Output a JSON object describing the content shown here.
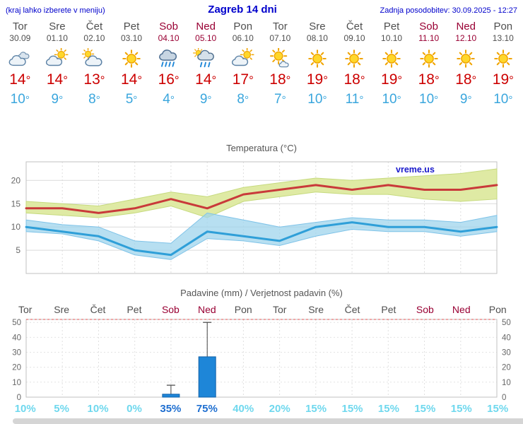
{
  "header": {
    "left_note": "(kraj lahko izberete v meniju)",
    "title": "Zagreb 14 dni",
    "updated": "Zadnja posodobitev: 30.09.2025 - 12:27"
  },
  "degree_symbol": "°",
  "colors": {
    "header_blue": "#0000cc",
    "weekend_red": "#990033",
    "temp_high_red": "#cc0000",
    "temp_low_blue": "#3aa6dd",
    "prob_light": "#6fd8ee",
    "prob_strong": "#1f6fd0",
    "bar_blue": "#1e86d8"
  },
  "days": [
    {
      "name": "Tor",
      "date": "30.09",
      "weekend": false,
      "icon": "cloudy",
      "high": "14",
      "low": "10"
    },
    {
      "name": "Sre",
      "date": "01.10",
      "weekend": false,
      "icon": "partly-cloudy",
      "high": "14",
      "low": "9"
    },
    {
      "name": "Čet",
      "date": "02.10",
      "weekend": false,
      "icon": "mostly-cloudy",
      "high": "13",
      "low": "8"
    },
    {
      "name": "Pet",
      "date": "03.10",
      "weekend": false,
      "icon": "sunny",
      "high": "14",
      "low": "5"
    },
    {
      "name": "Sob",
      "date": "04.10",
      "weekend": true,
      "icon": "rain",
      "high": "16",
      "low": "4"
    },
    {
      "name": "Ned",
      "date": "05.10",
      "weekend": true,
      "icon": "rain-showers",
      "high": "14",
      "low": "9"
    },
    {
      "name": "Pon",
      "date": "06.10",
      "weekend": false,
      "icon": "partly-cloudy",
      "high": "17",
      "low": "8"
    },
    {
      "name": "Tor",
      "date": "07.10",
      "weekend": false,
      "icon": "mostly-sunny",
      "high": "18",
      "low": "7"
    },
    {
      "name": "Sre",
      "date": "08.10",
      "weekend": false,
      "icon": "sunny",
      "high": "19",
      "low": "10"
    },
    {
      "name": "Čet",
      "date": "09.10",
      "weekend": false,
      "icon": "sunny",
      "high": "18",
      "low": "11"
    },
    {
      "name": "Pet",
      "date": "10.10",
      "weekend": false,
      "icon": "sunny",
      "high": "19",
      "low": "10"
    },
    {
      "name": "Sob",
      "date": "11.10",
      "weekend": true,
      "icon": "sunny",
      "high": "18",
      "low": "10"
    },
    {
      "name": "Ned",
      "date": "12.10",
      "weekend": true,
      "icon": "sunny",
      "high": "18",
      "low": "9"
    },
    {
      "name": "Pon",
      "date": "13.10",
      "weekend": false,
      "icon": "sunny",
      "high": "19",
      "low": "10"
    }
  ],
  "chart_data": [
    {
      "type": "line",
      "title": "Temperatura (°C)",
      "watermark": "vreme.us",
      "x_labels": [
        "Tor",
        "Sre",
        "Čet",
        "Pet",
        "Sob",
        "Ned",
        "Pon",
        "Tor",
        "Sre",
        "Čet",
        "Pet",
        "Sob",
        "Ned",
        "Pon"
      ],
      "ylim": [
        0,
        24
      ],
      "yticks": [
        5,
        10,
        15,
        20
      ],
      "grid": true,
      "series": [
        {
          "name": "temp-max-band",
          "kind": "band",
          "upper": [
            15.5,
            15,
            14.5,
            16,
            17.5,
            16.5,
            18.5,
            19.5,
            20.5,
            20,
            20.5,
            21,
            21.5,
            22.5
          ],
          "lower": [
            13,
            12.5,
            12,
            13,
            14.5,
            12,
            15.5,
            16.5,
            17.5,
            17,
            17,
            16,
            15.5,
            16
          ],
          "fill": "#dfeaa4",
          "edge": "#c6da7e",
          "opacity": 1
        },
        {
          "name": "temp-min-band",
          "kind": "band",
          "upper": [
            11.5,
            10.5,
            10,
            7,
            6.5,
            13,
            11.5,
            10,
            11,
            12,
            11.5,
            11.5,
            11,
            12.5
          ],
          "lower": [
            9,
            8.5,
            7,
            4,
            3,
            7.5,
            7,
            6,
            8,
            9.5,
            9,
            9,
            8,
            9
          ],
          "fill": "#9fd4ec",
          "edge": "#7fc3e8",
          "opacity": 0.75
        },
        {
          "name": "temp-max",
          "kind": "line",
          "values": [
            14,
            14,
            13,
            14,
            16,
            14,
            17,
            18,
            19,
            18,
            19,
            18,
            18,
            19
          ],
          "color": "#c93a3a",
          "width": 3
        },
        {
          "name": "temp-min",
          "kind": "line",
          "values": [
            10,
            9,
            8,
            5,
            4,
            9,
            8,
            7,
            10,
            11,
            10,
            10,
            9,
            10
          ],
          "color": "#2f9fd8",
          "width": 3
        }
      ]
    },
    {
      "type": "bar",
      "title": "Padavine (mm) / Verjetnost padavin (%)",
      "x_labels": [
        "Tor",
        "Sre",
        "Čet",
        "Pet",
        "Sob",
        "Ned",
        "Pon",
        "Tor",
        "Sre",
        "Čet",
        "Pet",
        "Sob",
        "Ned",
        "Pon"
      ],
      "ylim": [
        0,
        52
      ],
      "yticks": [
        0,
        10,
        20,
        30,
        40,
        50
      ],
      "values": [
        0,
        0,
        0,
        0,
        2,
        27,
        0,
        0,
        0,
        0,
        0,
        0,
        0,
        0
      ],
      "whisker_max": [
        0,
        0,
        0,
        0,
        8,
        50,
        0,
        0,
        0,
        0,
        0,
        0,
        0,
        0
      ],
      "probabilities": [
        {
          "label": "10%",
          "strong": false
        },
        {
          "label": "5%",
          "strong": false
        },
        {
          "label": "10%",
          "strong": false
        },
        {
          "label": "0%",
          "strong": false
        },
        {
          "label": "35%",
          "strong": true
        },
        {
          "label": "75%",
          "strong": true
        },
        {
          "label": "40%",
          "strong": false
        },
        {
          "label": "20%",
          "strong": false
        },
        {
          "label": "15%",
          "strong": false
        },
        {
          "label": "15%",
          "strong": false
        },
        {
          "label": "15%",
          "strong": false
        },
        {
          "label": "15%",
          "strong": false
        },
        {
          "label": "15%",
          "strong": false
        },
        {
          "label": "15%",
          "strong": false
        }
      ]
    }
  ]
}
